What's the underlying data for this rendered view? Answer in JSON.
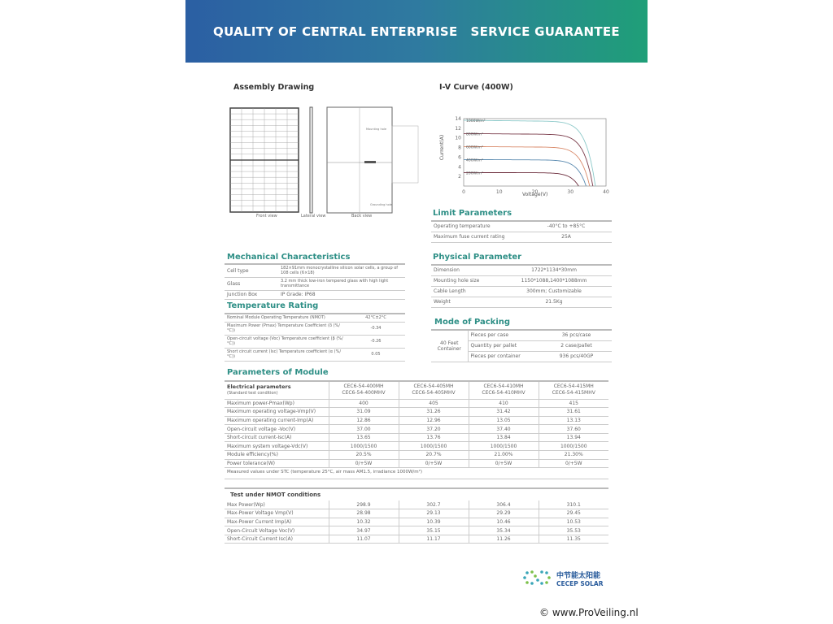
{
  "banner": {
    "left": "QUALITY OF CENTRAL ENTERPRISE",
    "right": "SERVICE GUARANTEE"
  },
  "colors": {
    "banner_start": "#2b5fa3",
    "banner_end": "#1f9f78",
    "section_heading": "#2e8f86"
  },
  "assembly": {
    "title": "Assembly Drawing",
    "front": "Front view",
    "lateral": "Lateral view",
    "back": "Back view",
    "mounting": "Mounting hole",
    "grounding": "Grounding hole"
  },
  "iv": {
    "title": "I-V Curve (400W)",
    "ylabel": "Current(A)",
    "xlabel": "Voltage(V)",
    "chart_data": {
      "type": "line",
      "xlim": [
        0,
        40
      ],
      "ylim": [
        0,
        14
      ],
      "xticks": [
        0,
        10,
        20,
        30,
        40
      ],
      "yticks": [
        2,
        4,
        6,
        8,
        10,
        12,
        14
      ],
      "series": [
        {
          "name": "1000W/m²",
          "isc": 13.65,
          "voc": 37.0,
          "color": "#8cc9c9"
        },
        {
          "name": "800W/m²",
          "isc": 10.9,
          "voc": 36.3,
          "color": "#7a3b4a"
        },
        {
          "name": "600W/m²",
          "isc": 8.2,
          "voc": 35.4,
          "color": "#d98a6a"
        },
        {
          "name": "400W/m²",
          "isc": 5.5,
          "voc": 34.4,
          "color": "#5a8ab0"
        },
        {
          "name": "200W/m²",
          "isc": 2.8,
          "voc": 32.3,
          "color": "#6a2a3a"
        }
      ]
    }
  },
  "limit": {
    "title": "Limit Parameters",
    "rows": [
      [
        "Operating temperature",
        "-40°C to +85°C"
      ],
      [
        "Maximum fuse current rating",
        "25A"
      ]
    ]
  },
  "mechanical": {
    "title": "Mechanical Characteristics",
    "rows": [
      [
        "Cell type",
        "182×91mm monocrystalline silicon solar cells, a group of 108 cells (6×18)"
      ],
      [
        "Glass",
        "3.2 mm thick low-iron tempered glass with high light transmittance"
      ],
      [
        "Junction Box",
        "IP Grade: IP68"
      ]
    ]
  },
  "physical": {
    "title": "Physical Parameter",
    "rows": [
      [
        "Dimension",
        "1722*1134*30mm"
      ],
      [
        "Mounting hole size",
        "1150*1088,1400*1088mm"
      ],
      [
        "Cable Length",
        "300mm; Customizable"
      ],
      [
        "Weight",
        "21.5Kg"
      ]
    ]
  },
  "temperature": {
    "title": "Temperature Rating",
    "rows": [
      [
        "Nominal Module Operating Temperature (NMOT)",
        "42°C±2°C"
      ],
      [
        "Maximum Power (Pmax) Temperature Coefficient (δ (%/°C))",
        "-0.34"
      ],
      [
        "Open-circuit voltage (Voc) Temperature coefficient (β (%/°C))",
        "-0.26"
      ],
      [
        "Short circuit current (Isc) Temperature coefficient (α (%/°C))",
        "0.05"
      ]
    ]
  },
  "packing": {
    "title": "Mode of Packing",
    "group": "40 Feet Container",
    "rows": [
      [
        "Pieces per case",
        "36 pcs/case"
      ],
      [
        "Quantity per pallet",
        "2 case/pallet"
      ],
      [
        "Pieces per container",
        "936 pcs/40GP"
      ]
    ]
  },
  "params": {
    "title": "Parameters of Module",
    "head1": "Electrical parameters",
    "head2": "(Standard test condition)",
    "models": [
      [
        "CEC6-54-400MH",
        "CEC6-54-400MHV"
      ],
      [
        "CEC6-54-405MH",
        "CEC6-54-405MHV"
      ],
      [
        "CEC6-54-410MH",
        "CEC6-54-410MHV"
      ],
      [
        "CEC6-54-415MH",
        "CEC6-54-415MHV"
      ]
    ],
    "rows": [
      [
        "Maximum power-Pmax(Wp)",
        "400",
        "405",
        "410",
        "415"
      ],
      [
        "Maximum operating voltage-Vmp(V)",
        "31.09",
        "31.26",
        "31.42",
        "31.61"
      ],
      [
        "Maximum operating current-Imp(A)",
        "12.86",
        "12.96",
        "13.05",
        "13.13"
      ],
      [
        "Open-circuit voltage -Voc(V)",
        "37.00",
        "37.20",
        "37.40",
        "37.60"
      ],
      [
        "Short-circuit current-Isc(A)",
        "13.65",
        "13.76",
        "13.84",
        "13.94"
      ],
      [
        "Maximum system voltage-Vdc(V)",
        "1000/1500",
        "1000/1500",
        "1000/1500",
        "1000/1500"
      ],
      [
        "Module efficiency(%)",
        "20.5%",
        "20.7%",
        "21.00%",
        "21.30%"
      ],
      [
        "Power tolerance(W)",
        "0/+5W",
        "0/+5W",
        "0/+5W",
        "0/+5W"
      ]
    ],
    "note": "Measured values under STC (temperature 25°C, air mass AM1.5, irradiance 1000W/m²)"
  },
  "nmot": {
    "title": "Test under NMOT conditions",
    "rows": [
      [
        "Max Power(Wp)",
        "298.9",
        "302.7",
        "306.4",
        "310.1"
      ],
      [
        "Max-Power Voltage Vmp(V)",
        "28.98",
        "29.13",
        "29.29",
        "29.45"
      ],
      [
        "Max-Power Current Imp(A)",
        "10.32",
        "10.39",
        "10.46",
        "10.53"
      ],
      [
        "Open-Circuit Voltage Voc(V)",
        "34.97",
        "35.15",
        "35.34",
        "35.53"
      ],
      [
        "Short-Circuit Current Isc(A)",
        "11.07",
        "11.17",
        "11.26",
        "11.35"
      ]
    ]
  },
  "logo": {
    "cn": "中节能太阳能",
    "en": "CECEP SOLAR"
  },
  "watermark": "© www.ProVeiling.nl"
}
